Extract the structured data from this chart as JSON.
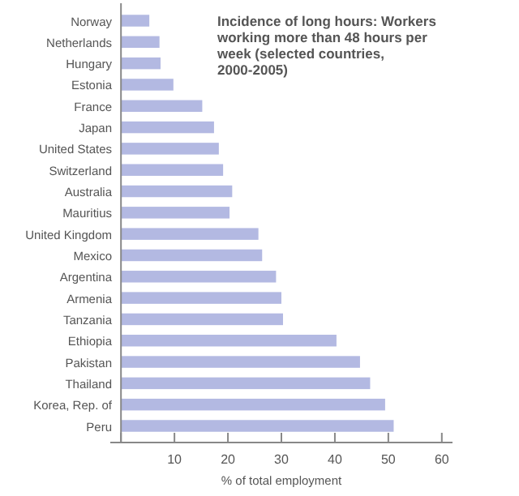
{
  "chart_data": {
    "type": "bar",
    "orientation": "horizontal",
    "title": "Incidence of long hours: Workers working more than 48 hours per week (selected countries, 2000-2005)",
    "xlabel": "% of total employment",
    "categories": [
      "Norway",
      "Netherlands",
      "Hungary",
      "Estonia",
      "France",
      "Japan",
      "United States",
      "Switzerland",
      "Australia",
      "Mauritius",
      "United Kingdom",
      "Mexico",
      "Argentina",
      "Armenia",
      "Tanzania",
      "Ethiopia",
      "Pakistan",
      "Thailand",
      "Korea, Rep. of",
      "Peru"
    ],
    "values": [
      5.3,
      7.2,
      7.4,
      9.8,
      15.2,
      17.4,
      18.3,
      19.1,
      20.8,
      20.3,
      25.7,
      26.4,
      29,
      30,
      30.3,
      40.3,
      44.7,
      46.6,
      49.4,
      51
    ],
    "color": "#b3b9e2",
    "xlim": [
      -2,
      62
    ],
    "xticks": [
      {
        "value": 0,
        "label": null
      },
      10,
      20,
      30,
      40,
      50,
      60
    ],
    "grid": false
  }
}
